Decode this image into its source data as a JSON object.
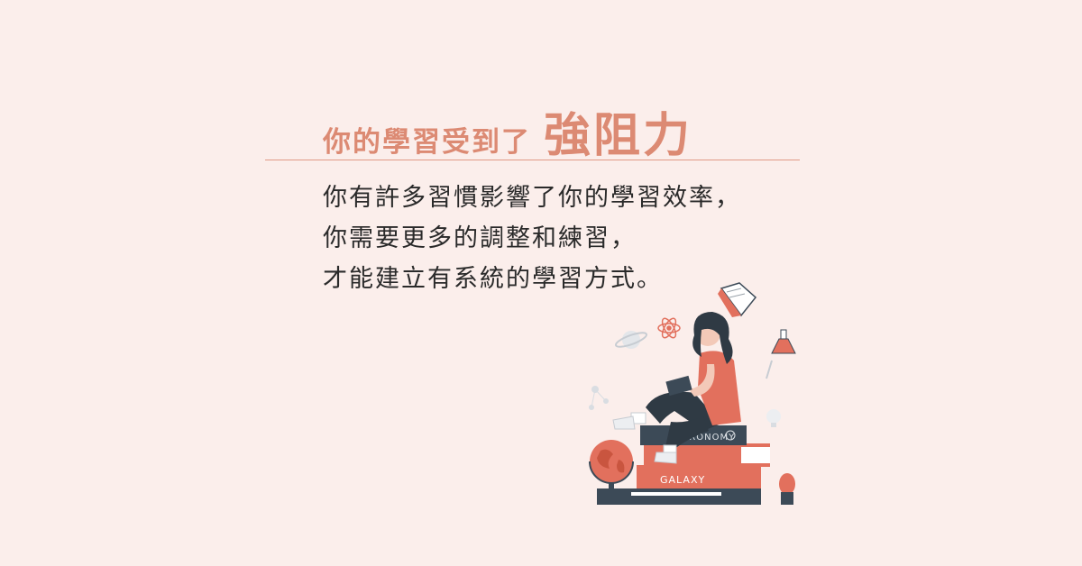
{
  "heading": {
    "main": "你的學習受到了",
    "accent": "強阻力"
  },
  "body": {
    "lines": [
      "你有許多習慣影響了你的學習效率，",
      "你需要更多的調整和練習，",
      "才能建立有系統的學習方式。"
    ]
  },
  "illustration": {
    "book_labels": [
      "ASTRONOMY",
      "GALAXY"
    ]
  },
  "colors": {
    "background": "#fbeeeb",
    "accent": "#dc8a73",
    "text": "#2a2a2a",
    "book_dark": "#3c4a57",
    "book_coral": "#e2705d"
  }
}
